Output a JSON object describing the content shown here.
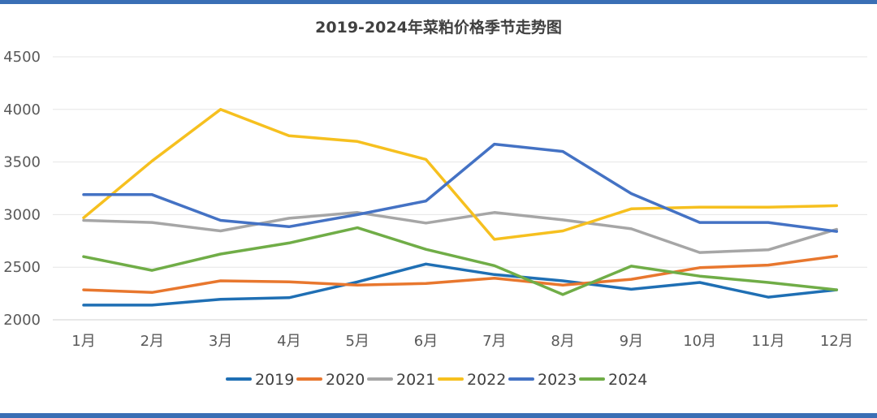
{
  "chart_data": {
    "type": "line",
    "title": "2019-2024年菜粕价格季节走势图",
    "xlabel": "",
    "ylabel": "",
    "categories": [
      "1月",
      "2月",
      "3月",
      "4月",
      "5月",
      "6月",
      "7月",
      "8月",
      "9月",
      "10月",
      "11月",
      "12月"
    ],
    "ylim": [
      2000,
      4500
    ],
    "yticks": [
      2000,
      2500,
      3000,
      3500,
      4000,
      4500
    ],
    "grid": true,
    "legend_position": "bottom",
    "series": [
      {
        "name": "2019",
        "color": "#1f6fb4",
        "values": [
          2140,
          2140,
          2195,
          2210,
          2360,
          2530,
          2430,
          2370,
          2290,
          2355,
          2215,
          2285
        ]
      },
      {
        "name": "2020",
        "color": "#e8772e",
        "values": [
          2285,
          2260,
          2370,
          2360,
          2330,
          2345,
          2395,
          2330,
          2385,
          2495,
          2520,
          2605
        ]
      },
      {
        "name": "2021",
        "color": "#a6a6a6",
        "values": [
          2945,
          2925,
          2845,
          2965,
          3020,
          2920,
          3020,
          2950,
          2865,
          2640,
          2665,
          2860
        ]
      },
      {
        "name": "2022",
        "color": "#f6c01f",
        "values": [
          2970,
          3510,
          4000,
          3750,
          3695,
          3525,
          2765,
          2845,
          3055,
          3070,
          3070,
          3085
        ]
      },
      {
        "name": "2023",
        "color": "#4472c4",
        "values": [
          3190,
          3190,
          2945,
          2885,
          3000,
          3130,
          3670,
          3600,
          3200,
          2925,
          2925,
          2840
        ]
      },
      {
        "name": "2024",
        "color": "#70ad47",
        "values": [
          2600,
          2470,
          2625,
          2730,
          2875,
          2670,
          2515,
          2240,
          2510,
          2415,
          2355,
          2285
        ]
      }
    ]
  }
}
